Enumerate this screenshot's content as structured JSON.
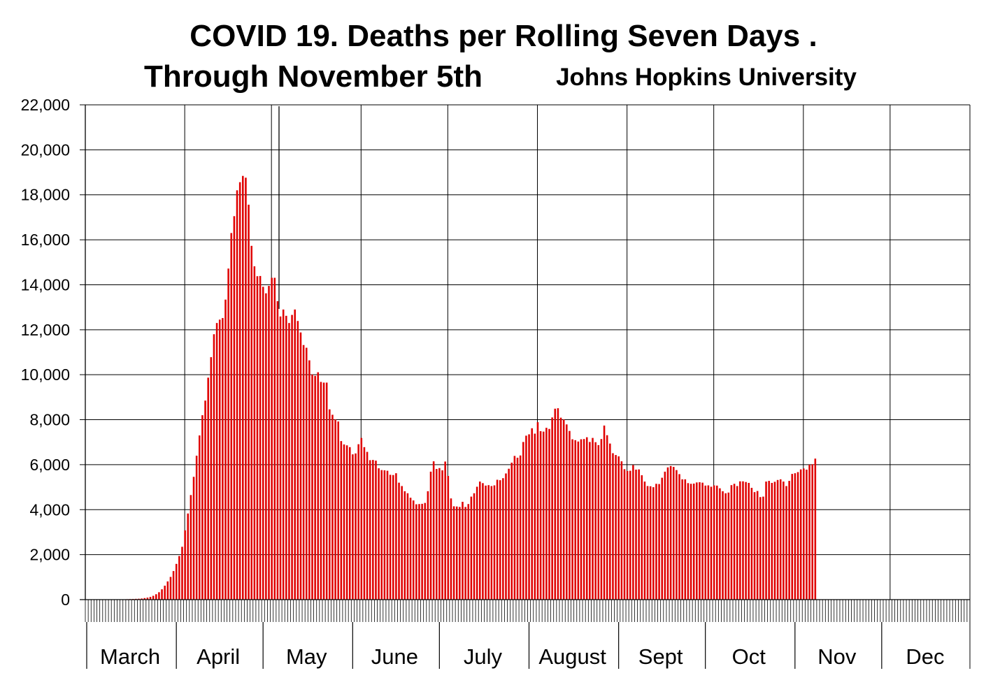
{
  "chart_data": {
    "type": "bar",
    "title": "COVID 19. Deaths per Rolling Seven Days .",
    "subtitle": "Through November 5th",
    "source": "Johns Hopkins University",
    "xlabel": "",
    "ylabel": "",
    "ylim": [
      0,
      22000
    ],
    "yticks": [
      0,
      2000,
      4000,
      6000,
      8000,
      10000,
      12000,
      14000,
      16000,
      18000,
      20000,
      22000
    ],
    "ytick_labels": [
      "0",
      "2,000",
      "4,000",
      "6,000",
      "8,000",
      "10,000",
      "12,000",
      "14,000",
      "16,000",
      "18,000",
      "20,000",
      "22,000"
    ],
    "months": [
      "March",
      "April",
      "May",
      "June",
      "July",
      "August",
      "Sept",
      "Oct",
      "Nov",
      "Dec"
    ],
    "month_days": [
      31,
      30,
      31,
      30,
      31,
      31,
      30,
      31,
      30,
      31
    ],
    "series_start_day": 10,
    "series_name": "Deaths per rolling seven days",
    "bar_color": "#e00000",
    "grid": true,
    "values": [
      5,
      10,
      10,
      15,
      20,
      25,
      30,
      35,
      40,
      50,
      70,
      90,
      120,
      170,
      240,
      330,
      460,
      620,
      810,
      1010,
      1270,
      1590,
      1940,
      2350,
      3080,
      3830,
      4650,
      5460,
      6400,
      7300,
      8200,
      8850,
      9870,
      10780,
      11800,
      12300,
      12450,
      12520,
      13340,
      14720,
      16300,
      17050,
      18200,
      18560,
      18840,
      18760,
      17560,
      15730,
      14820,
      14380,
      14390,
      13910,
      13620,
      13950,
      14310,
      14310,
      13270,
      12590,
      12900,
      12620,
      12300,
      12660,
      12900,
      12390,
      11880,
      11320,
      11200,
      10640,
      10010,
      9950,
      10110,
      9680,
      9650,
      9650,
      8460,
      8220,
      8010,
      7920,
      7050,
      6900,
      6860,
      6780,
      6460,
      6500,
      6910,
      7190,
      6780,
      6570,
      6200,
      6210,
      6180,
      5840,
      5760,
      5750,
      5730,
      5550,
      5540,
      5620,
      5200,
      5050,
      4820,
      4730,
      4530,
      4410,
      4240,
      4250,
      4260,
      4300,
      4820,
      5690,
      6150,
      5810,
      5850,
      5750,
      6140,
      5500,
      4500,
      4150,
      4140,
      4120,
      4350,
      4120,
      4250,
      4580,
      4730,
      5020,
      5250,
      5180,
      5070,
      5090,
      5050,
      5080,
      5330,
      5310,
      5400,
      5610,
      5820,
      6090,
      6390,
      6310,
      6410,
      7010,
      7290,
      7350,
      7620,
      7380,
      7890,
      7490,
      7470,
      7640,
      7590,
      8100,
      8490,
      8510,
      8090,
      8010,
      7790,
      7500,
      7130,
      7090,
      7030,
      7130,
      7140,
      7220,
      7010,
      7190,
      7000,
      6870,
      7140,
      7740,
      7310,
      6940,
      6510,
      6430,
      6370,
      6150,
      5800,
      5720,
      5730,
      5980,
      5780,
      5790,
      5530,
      5250,
      5050,
      5040,
      5000,
      5150,
      5140,
      5420,
      5690,
      5880,
      5940,
      5900,
      5760,
      5580,
      5350,
      5350,
      5180,
      5150,
      5160,
      5210,
      5220,
      5200,
      5070,
      5080,
      5020,
      5080,
      5070,
      4950,
      4820,
      4730,
      4760,
      5090,
      5150,
      5050,
      5260,
      5260,
      5230,
      5190,
      4970,
      4780,
      4830,
      4560,
      4580,
      5250,
      5280,
      5190,
      5240,
      5320,
      5350,
      5250,
      5050,
      5280,
      5590,
      5620,
      5670,
      5790,
      5830,
      5780,
      6000,
      6020,
      6270
    ]
  }
}
